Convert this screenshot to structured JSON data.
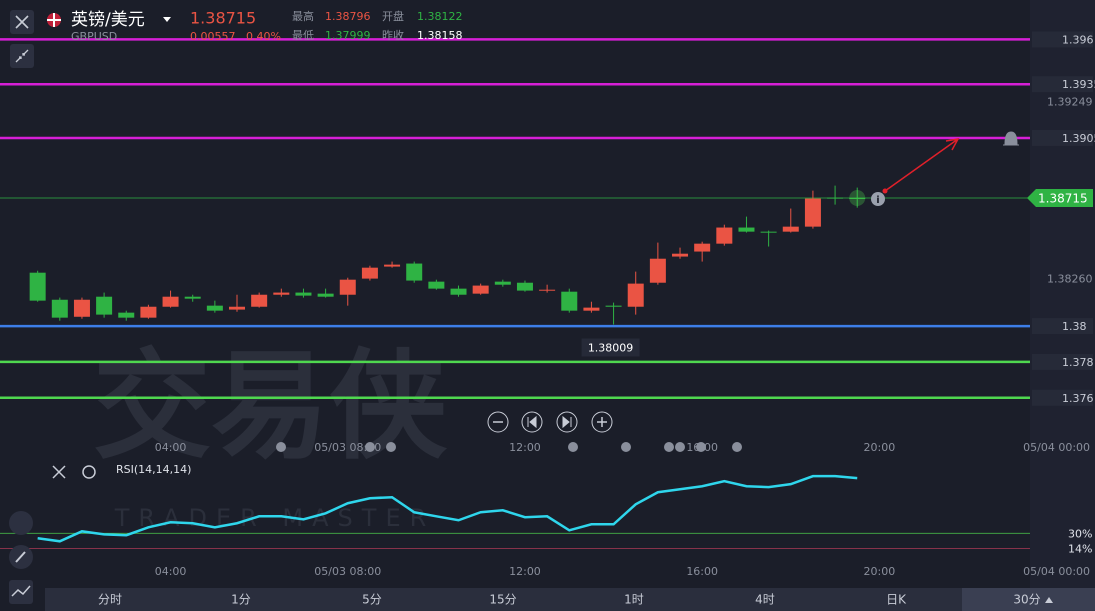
{
  "header": {
    "symbol_name": "英镑/美元",
    "symbol_code": "GBPUSD",
    "price": "1.38715",
    "change": "0.00557",
    "change_pct": "0.40%",
    "stats": [
      {
        "label": "最高",
        "value": "1.38796"
      },
      {
        "label": "开盘",
        "value": "1.38122"
      },
      {
        "label": "最低",
        "value": "1.37999"
      },
      {
        "label": "昨收",
        "value": "1.38158"
      }
    ]
  },
  "watermark": {
    "title": "交易侠",
    "subtitle": "TRADER MASTER"
  },
  "chart_data": [
    {
      "type": "candlestick",
      "up_color": "#ea5444",
      "down_color": "#2fb344",
      "open": [
        1.38298,
        1.38147,
        1.38052,
        1.38164,
        1.38075,
        1.38047,
        1.38108,
        1.38164,
        1.38114,
        1.38092,
        1.38108,
        1.38175,
        1.38187,
        1.38181,
        1.38175,
        1.38265,
        1.38332,
        1.38349,
        1.38248,
        1.38209,
        1.38181,
        1.38248,
        1.38242,
        1.38198,
        1.38192,
        1.38086,
        1.38114,
        1.38108,
        1.38242,
        1.38388,
        1.38416,
        1.3846,
        1.3855,
        1.38527,
        1.38527,
        1.38555,
        1.38717,
        1.38715
      ],
      "high": [
        1.38309,
        1.38159,
        1.38159,
        1.38187,
        1.38086,
        1.38119,
        1.38198,
        1.38175,
        1.38142,
        1.38175,
        1.38187,
        1.38209,
        1.38209,
        1.38209,
        1.3827,
        1.38337,
        1.3836,
        1.3836,
        1.38259,
        1.38226,
        1.38237,
        1.38259,
        1.38254,
        1.38231,
        1.38209,
        1.38136,
        1.38131,
        1.38304,
        1.38466,
        1.38438,
        1.38471,
        1.38566,
        1.38611,
        1.38533,
        1.38656,
        1.38756,
        1.38784,
        1.38773
      ],
      "low": [
        1.38136,
        1.3803,
        1.38041,
        1.38047,
        1.3803,
        1.38041,
        1.38103,
        1.38136,
        1.38075,
        1.3808,
        1.38103,
        1.38164,
        1.38159,
        1.38159,
        1.38114,
        1.38254,
        1.38326,
        1.38242,
        1.38203,
        1.38164,
        1.38175,
        1.3822,
        1.38192,
        1.38187,
        1.38075,
        1.38075,
        1.38009,
        1.38064,
        1.38231,
        1.38376,
        1.3836,
        1.38449,
        1.38522,
        1.38444,
        1.38522,
        1.38544,
        1.38678,
        1.38661
      ],
      "close": [
        1.38142,
        1.38047,
        1.38147,
        1.38064,
        1.38047,
        1.38108,
        1.38164,
        1.38153,
        1.38086,
        1.38108,
        1.38175,
        1.38187,
        1.3817,
        1.38164,
        1.38259,
        1.38326,
        1.38343,
        1.38254,
        1.38209,
        1.38175,
        1.38226,
        1.38231,
        1.38198,
        1.38203,
        1.38086,
        1.38103,
        1.38108,
        1.38237,
        1.38376,
        1.38404,
        1.3846,
        1.3855,
        1.38527,
        1.38522,
        1.38555,
        1.38712,
        1.38712,
        1.38715
      ],
      "xlim": [
        -1.7,
        44.8
      ],
      "ylim": [
        1.3742,
        1.3982
      ],
      "xticks": [
        {
          "value": 6,
          "label": "04:00"
        },
        {
          "value": 14,
          "label": "05/03 08:00"
        },
        {
          "value": 22,
          "label": "12:00"
        },
        {
          "value": 30,
          "label": "16:00"
        },
        {
          "value": 38,
          "label": "20:00"
        },
        {
          "value": 46,
          "label": "05/04 00:00"
        }
      ],
      "yticks": [
        1.39249,
        {
          "value": 1.3826,
          "label": "1.38260"
        }
      ],
      "levels": [
        {
          "value": 1.396,
          "color": "#d61fd6"
        },
        {
          "value": 1.3935,
          "color": "#d61fd6"
        },
        {
          "value": 1.3905,
          "color": "#d61fd6"
        },
        {
          "value": 1.38,
          "color": "#3d7ee8"
        },
        {
          "value": 1.378,
          "color": "#4fd84f"
        },
        {
          "value": 1.376,
          "color": "#4fd84f"
        }
      ],
      "last_price": 1.38715,
      "last_price_color": "#2fb344",
      "low_marker": 1.38009
    },
    {
      "type": "line",
      "title": "RSI(14,14,14)",
      "color": "#2fd6ec",
      "values": [
        24.7,
        21.5,
        32.1,
        28.9,
        27.9,
        36.4,
        41.7,
        40.7,
        36.4,
        40.7,
        48.1,
        48.1,
        44.9,
        51.3,
        62.0,
        67.3,
        68.4,
        52.4,
        48.1,
        43.9,
        52.4,
        54.5,
        47.1,
        48.1,
        33.2,
        39.6,
        39.6,
        60.9,
        73.7,
        76.9,
        80.1,
        85.5,
        80.1,
        79.1,
        82.3,
        90.8,
        90.8,
        88.7
      ],
      "ylim": [
        -25,
        108
      ],
      "yticks": [
        {
          "value": 30,
          "label": "30%"
        },
        {
          "value": 14,
          "label": "14%"
        }
      ]
    }
  ],
  "timeframes": [
    "分时",
    "1分",
    "5分",
    "15分",
    "1时",
    "4时",
    "日K",
    "30分"
  ],
  "active_timeframe": 7
}
